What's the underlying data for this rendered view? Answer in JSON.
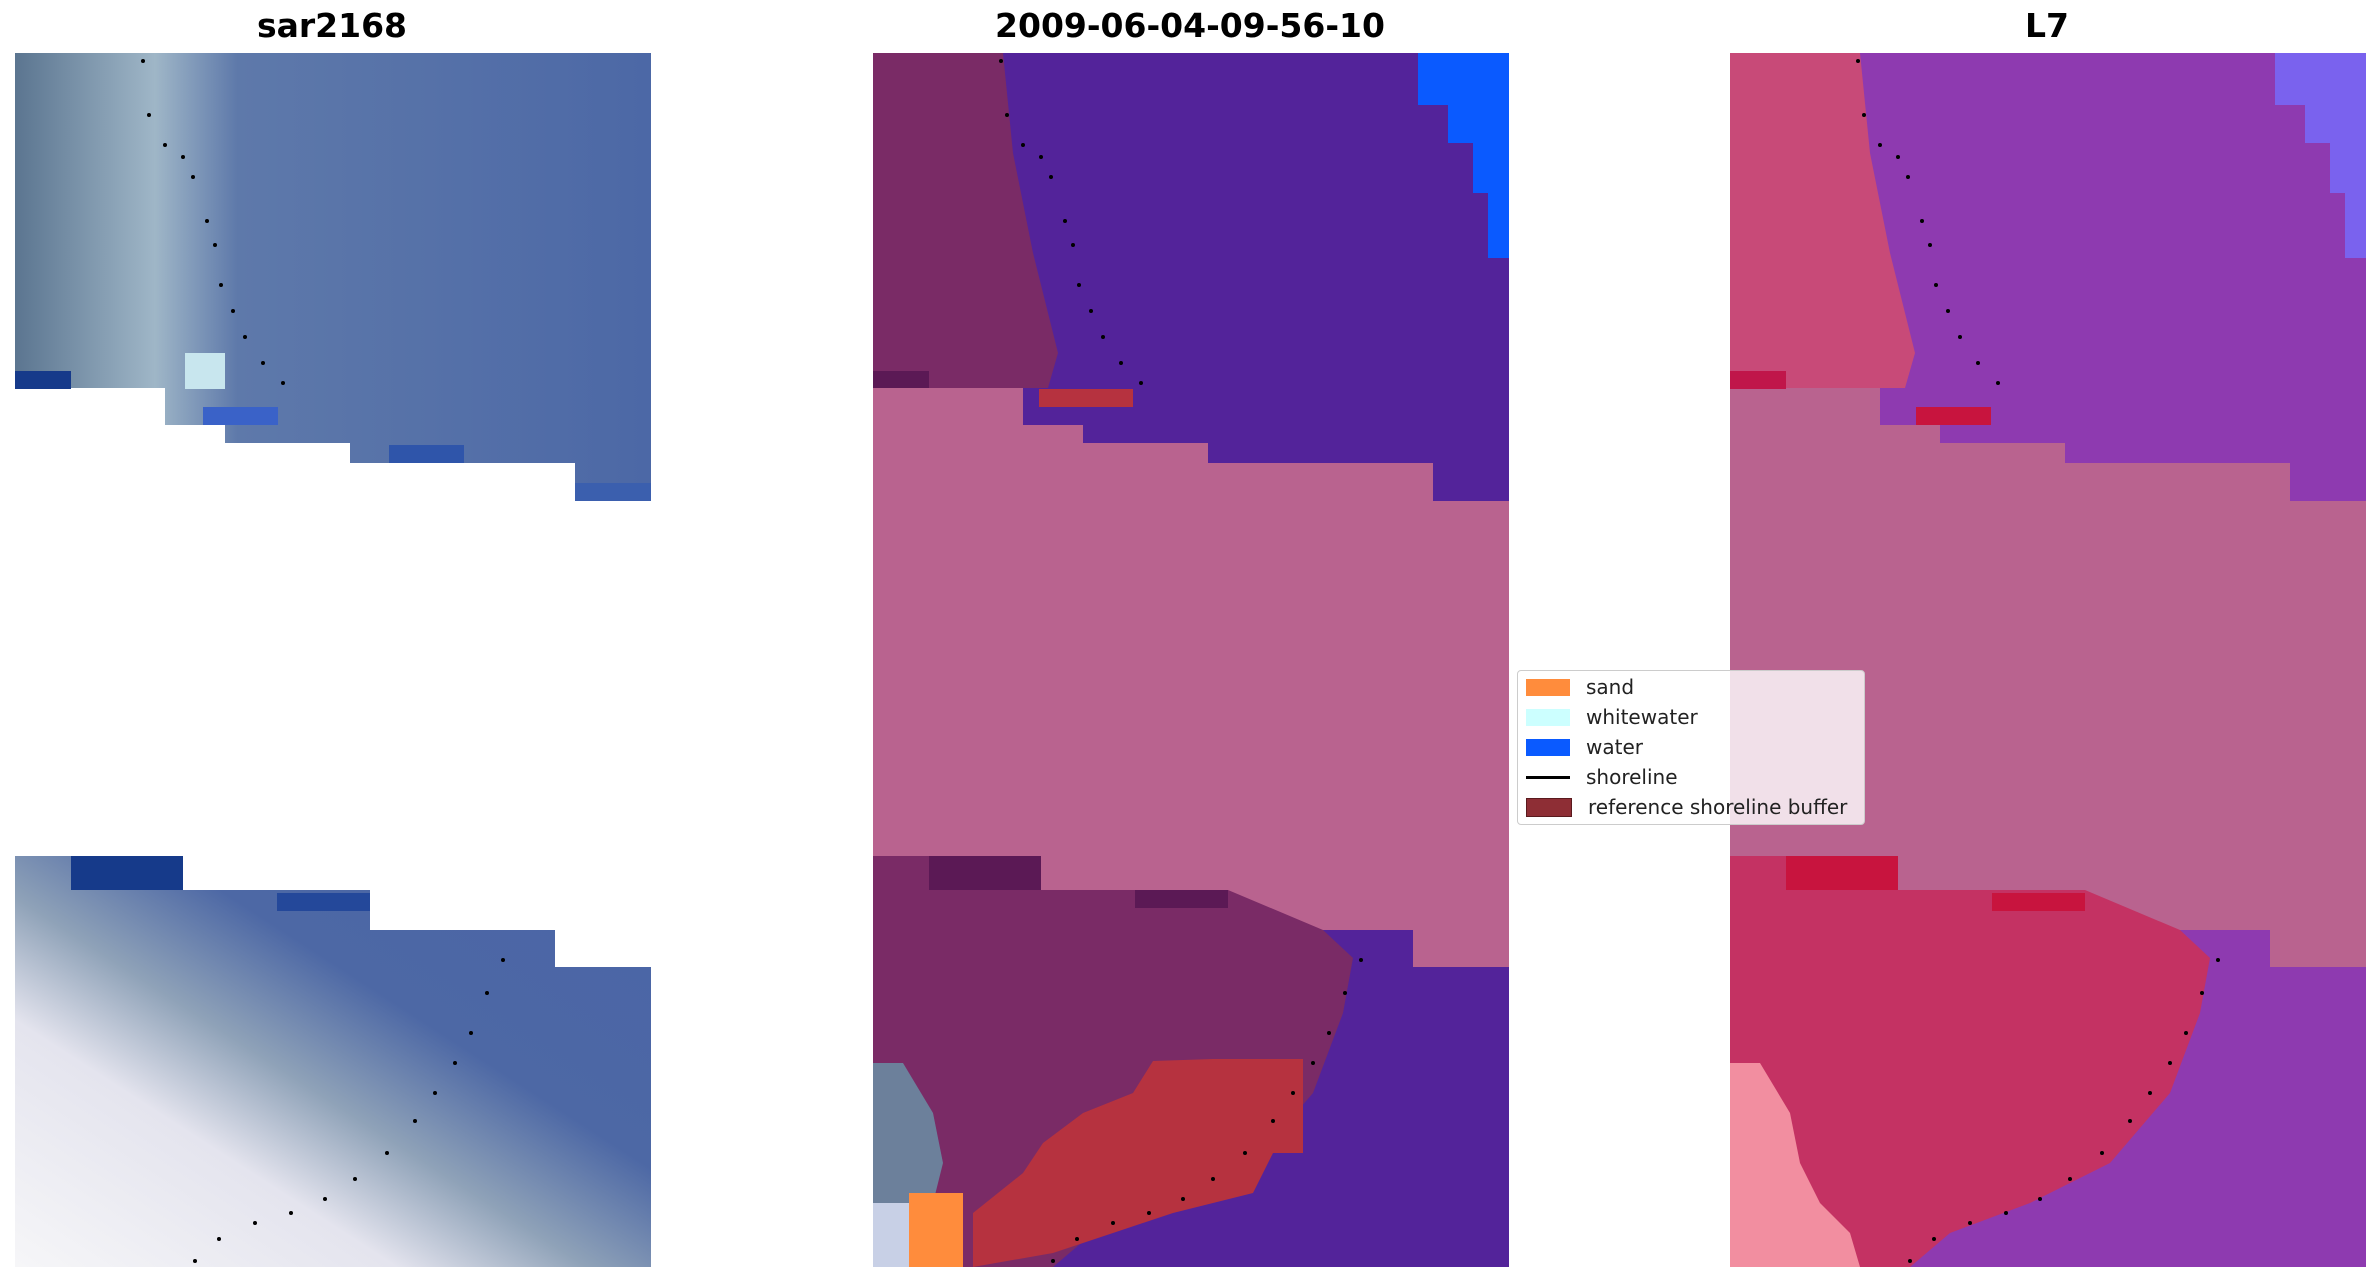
{
  "panels": [
    {
      "title": "sar2168"
    },
    {
      "title": "2009-06-04-09-56-10"
    },
    {
      "title": "L7"
    }
  ],
  "legend": {
    "items": [
      {
        "label": "sand",
        "color": "#ff8c3c",
        "kind": "patch"
      },
      {
        "label": "whitewater",
        "color": "#ccffff",
        "kind": "patch"
      },
      {
        "label": "water",
        "color": "#0a5aff",
        "kind": "patch"
      },
      {
        "label": "shoreline",
        "color": "#000000",
        "kind": "line"
      },
      {
        "label": "reference shoreline buffer",
        "color": "#8e2e35",
        "kind": "patch"
      }
    ]
  },
  "colors": {
    "water_rgb": "#4a64a6",
    "land_rgb": "#5a7896",
    "classified_water": "#53239a",
    "classified_buffer": "#b9638f",
    "classified_land": "#7a2b66",
    "ndwi_water": "#8e3ab0",
    "ndwi_land": "#c43263",
    "nodata": "#ffffff"
  }
}
